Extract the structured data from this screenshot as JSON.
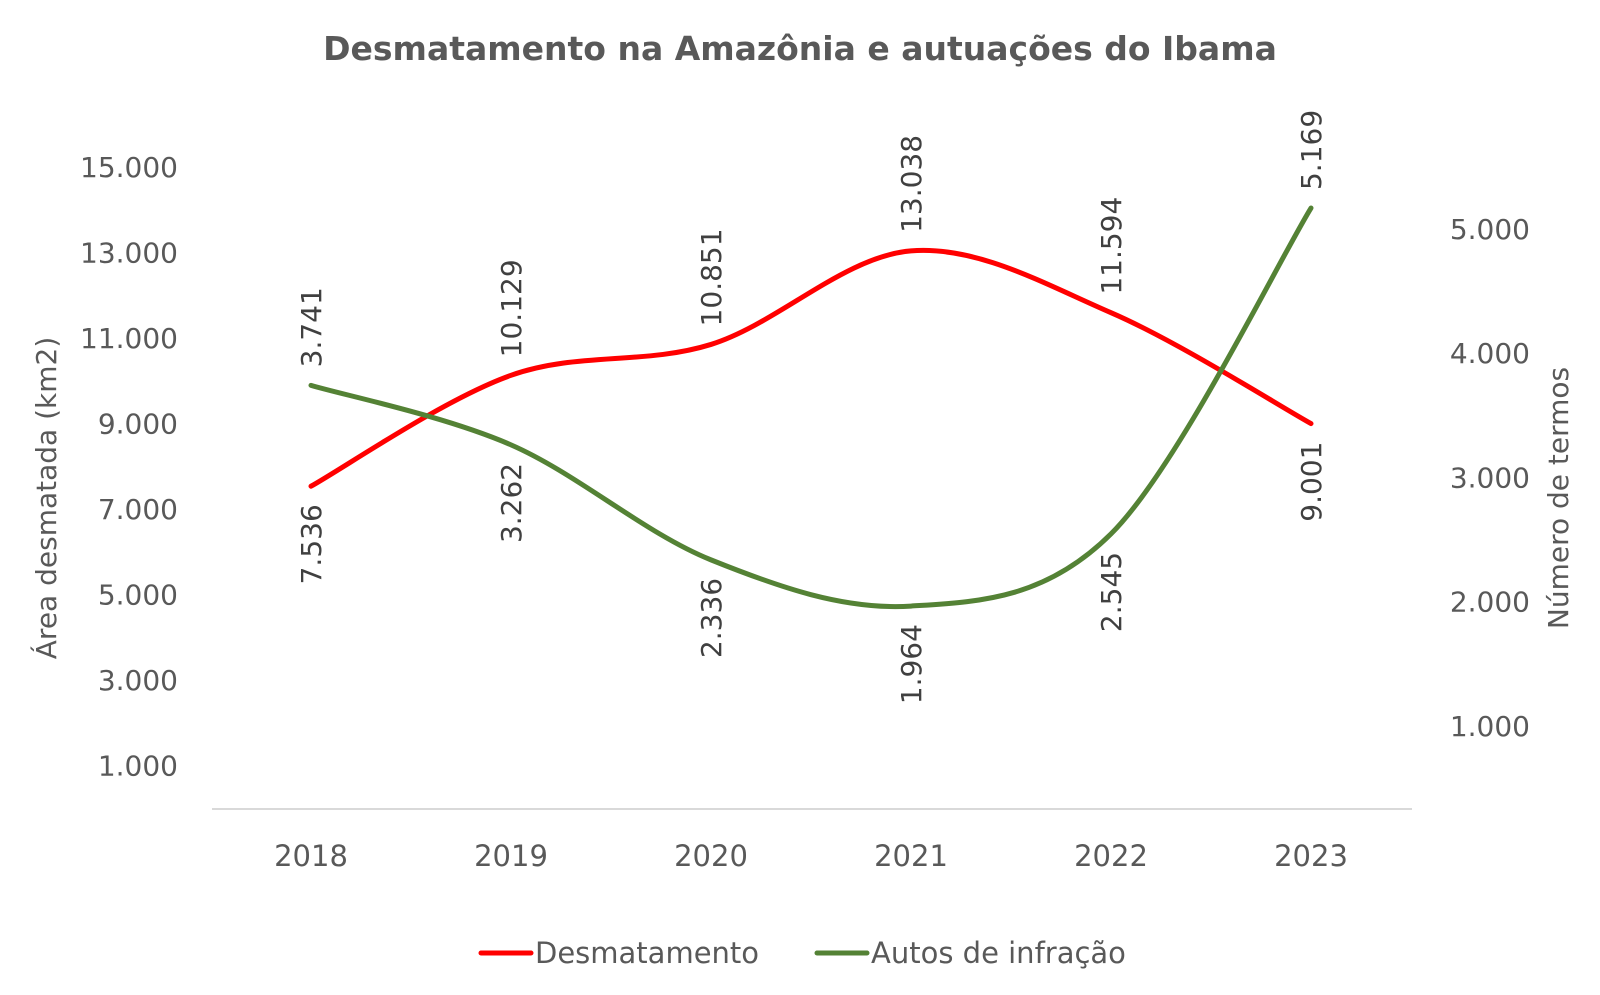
{
  "chart_data": {
    "type": "line",
    "title": "Desmatamento na Amazônia e autuações do Ibama",
    "categories": [
      "2018",
      "2019",
      "2020",
      "2021",
      "2022",
      "2023"
    ],
    "xlabel": "",
    "ylabel": "Área desmatada (km2)",
    "ylabel_right": "Número de termos",
    "ylim": [
      0,
      15000
    ],
    "ylim_right": [
      0,
      5000
    ],
    "yticks": [
      "1.000",
      "3.000",
      "5.000",
      "7.000",
      "9.000",
      "11.000",
      "13.000",
      "15.000"
    ],
    "ytick_values": [
      1000,
      3000,
      5000,
      7000,
      9000,
      11000,
      13000,
      15000
    ],
    "yticks_right": [
      "1.000",
      "2.000",
      "3.000",
      "4.000",
      "5.000"
    ],
    "ytick_values_right": [
      1000,
      2000,
      3000,
      4000,
      5000
    ],
    "grid": false,
    "smooth": true,
    "legend_position": "bottom-center",
    "series": [
      {
        "name": "Desmatamento",
        "axis": "left",
        "color": "#ff0000",
        "values": [
          7536,
          10129,
          10851,
          13038,
          11594,
          9001
        ],
        "labels": [
          "7.536",
          "10.129",
          "10.851",
          "13.038",
          "11.594",
          "9.001"
        ],
        "label_positions": [
          "below",
          "above",
          "above",
          "above",
          "above",
          "below"
        ]
      },
      {
        "name": "Autos de infração",
        "axis": "right",
        "color": "#548235",
        "values": [
          3741,
          3262,
          2336,
          1964,
          2545,
          5169
        ],
        "labels": [
          "3.741",
          "3.262",
          "2.336",
          "1.964",
          "2.545",
          "5.169"
        ],
        "label_positions": [
          "above",
          "below",
          "below",
          "below",
          "below",
          "above"
        ]
      }
    ]
  },
  "colors": {
    "text": "#595959",
    "label_text": "#404040",
    "axis_line": "#d9d9d9"
  }
}
